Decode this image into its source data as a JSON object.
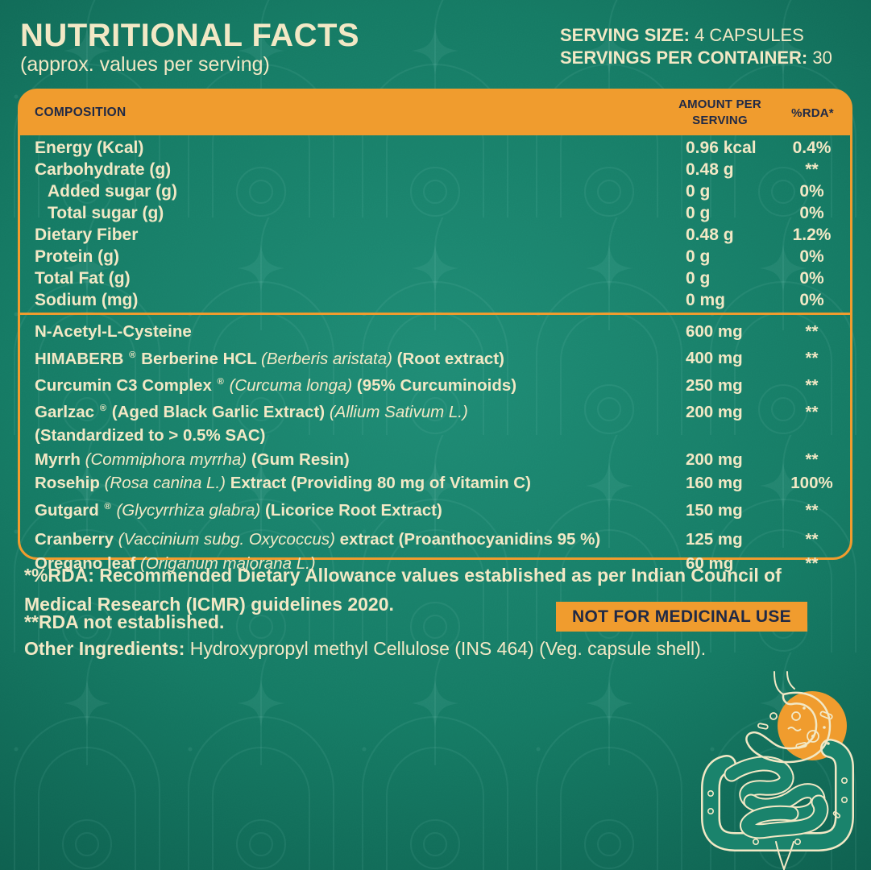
{
  "colors": {
    "background_teal": "#177F68",
    "accent_orange": "#F09C2E",
    "text_cream": "#F2E8C5",
    "text_navy": "#1F2946"
  },
  "header": {
    "title": "NUTRITIONAL FACTS",
    "subtitle": "(approx. values per serving)",
    "serving_size_label": "SERVING SIZE:",
    "serving_size_value": " 4 CAPSULES",
    "servings_label": "SERVINGS PER CONTAINER:",
    "servings_value": " 30"
  },
  "table": {
    "columns": {
      "composition": "COMPOSITION",
      "amount": "AMOUNT PER SERVING",
      "rda": "%RDA*"
    },
    "macro_rows": [
      {
        "name": "Energy (Kcal)",
        "amount": "0.96 kcal",
        "rda": "0.4%"
      },
      {
        "name": "Carbohydrate (g)",
        "amount": "0.48 g",
        "rda": "**"
      },
      {
        "name": "Added sugar (g)",
        "amount": "0 g",
        "rda": "0%",
        "indent": true
      },
      {
        "name": "Total sugar (g)",
        "amount": "0 g",
        "rda": "0%",
        "indent": true
      },
      {
        "name": "Dietary Fiber",
        "amount": "0.48 g",
        "rda": "1.2%"
      },
      {
        "name": "Protein (g)",
        "amount": "0 g",
        "rda": "0%"
      },
      {
        "name": "Total Fat (g)",
        "amount": "0 g",
        "rda": "0%"
      },
      {
        "name": "Sodium (mg)",
        "amount": "0 mg",
        "rda": "0%"
      }
    ],
    "ingredient_rows": [
      {
        "parts": [
          [
            "b",
            "N-Acetyl-L-Cysteine"
          ]
        ],
        "amount": "600 mg",
        "rda": "**"
      },
      {
        "parts": [
          [
            "b",
            "HIMABERB "
          ],
          [
            "sup",
            "®"
          ],
          [
            "b",
            " Berberine HCL "
          ],
          [
            "i",
            "(Berberis aristata)"
          ],
          [
            "b",
            " (Root extract)"
          ]
        ],
        "amount": "400 mg",
        "rda": "**"
      },
      {
        "parts": [
          [
            "b",
            "Curcumin C3 Complex "
          ],
          [
            "sup",
            "®"
          ],
          [
            "b",
            " "
          ],
          [
            "i",
            "(Curcuma longa)"
          ],
          [
            "b",
            " (95% Curcuminoids)"
          ]
        ],
        "amount": "250 mg",
        "rda": "**"
      },
      {
        "parts": [
          [
            "b",
            "Garlzac "
          ],
          [
            "sup",
            "®"
          ],
          [
            "b",
            " (Aged Black Garlic Extract) "
          ],
          [
            "i",
            "(Allium Sativum L.)"
          ]
        ],
        "amount": "200 mg",
        "rda": "**"
      },
      {
        "parts": [
          [
            "b",
            "(Standardized to > 0.5% SAC)"
          ]
        ],
        "amount": "",
        "rda": ""
      },
      {
        "parts": [
          [
            "b",
            "Myrrh "
          ],
          [
            "i",
            "(Commiphora myrrha)"
          ],
          [
            "b",
            " (Gum Resin)"
          ]
        ],
        "amount": "200 mg",
        "rda": "**"
      },
      {
        "parts": [
          [
            "b",
            "Rosehip "
          ],
          [
            "i",
            "(Rosa canina L.)"
          ],
          [
            "b",
            " Extract (Providing 80 mg of Vitamin C)"
          ]
        ],
        "amount": "160 mg",
        "rda": "100%"
      },
      {
        "parts": [
          [
            "b",
            "Gutgard "
          ],
          [
            "sup",
            "®"
          ],
          [
            "b",
            " "
          ],
          [
            "i",
            "(Glycyrrhiza glabra)"
          ],
          [
            "b",
            " (Licorice Root Extract)"
          ]
        ],
        "amount": "150 mg",
        "rda": "**"
      },
      {
        "parts": [
          [
            "b",
            "Cranberry "
          ],
          [
            "i",
            "(Vaccinium subg. Oxycoccus)"
          ],
          [
            "b",
            " extract (Proanthocyanidins 95 %)"
          ]
        ],
        "amount": "125 mg",
        "rda": "**",
        "gap": true
      },
      {
        "parts": [
          [
            "b",
            "Oregano leaf "
          ],
          [
            "i",
            "(Origanum majorana L.)"
          ]
        ],
        "amount": "60 mg",
        "rda": "**"
      }
    ]
  },
  "footer": {
    "rda_note_line1": "*%RDA: Recommended Dietary Allowance values established as per Indian Council of",
    "rda_note_line2": "Medical Research (ICMR) guidelines 2020.",
    "rda_not_established": "**RDA not established.",
    "badge": "NOT FOR MEDICINAL USE",
    "other_ingredients_label": "Other Ingredients:",
    "other_ingredients_value": " Hydroxypropyl methyl Cellulose (INS 464) (Veg. capsule shell)."
  },
  "icons": {
    "gut_illustration": "gut-probiotics-illustration"
  }
}
